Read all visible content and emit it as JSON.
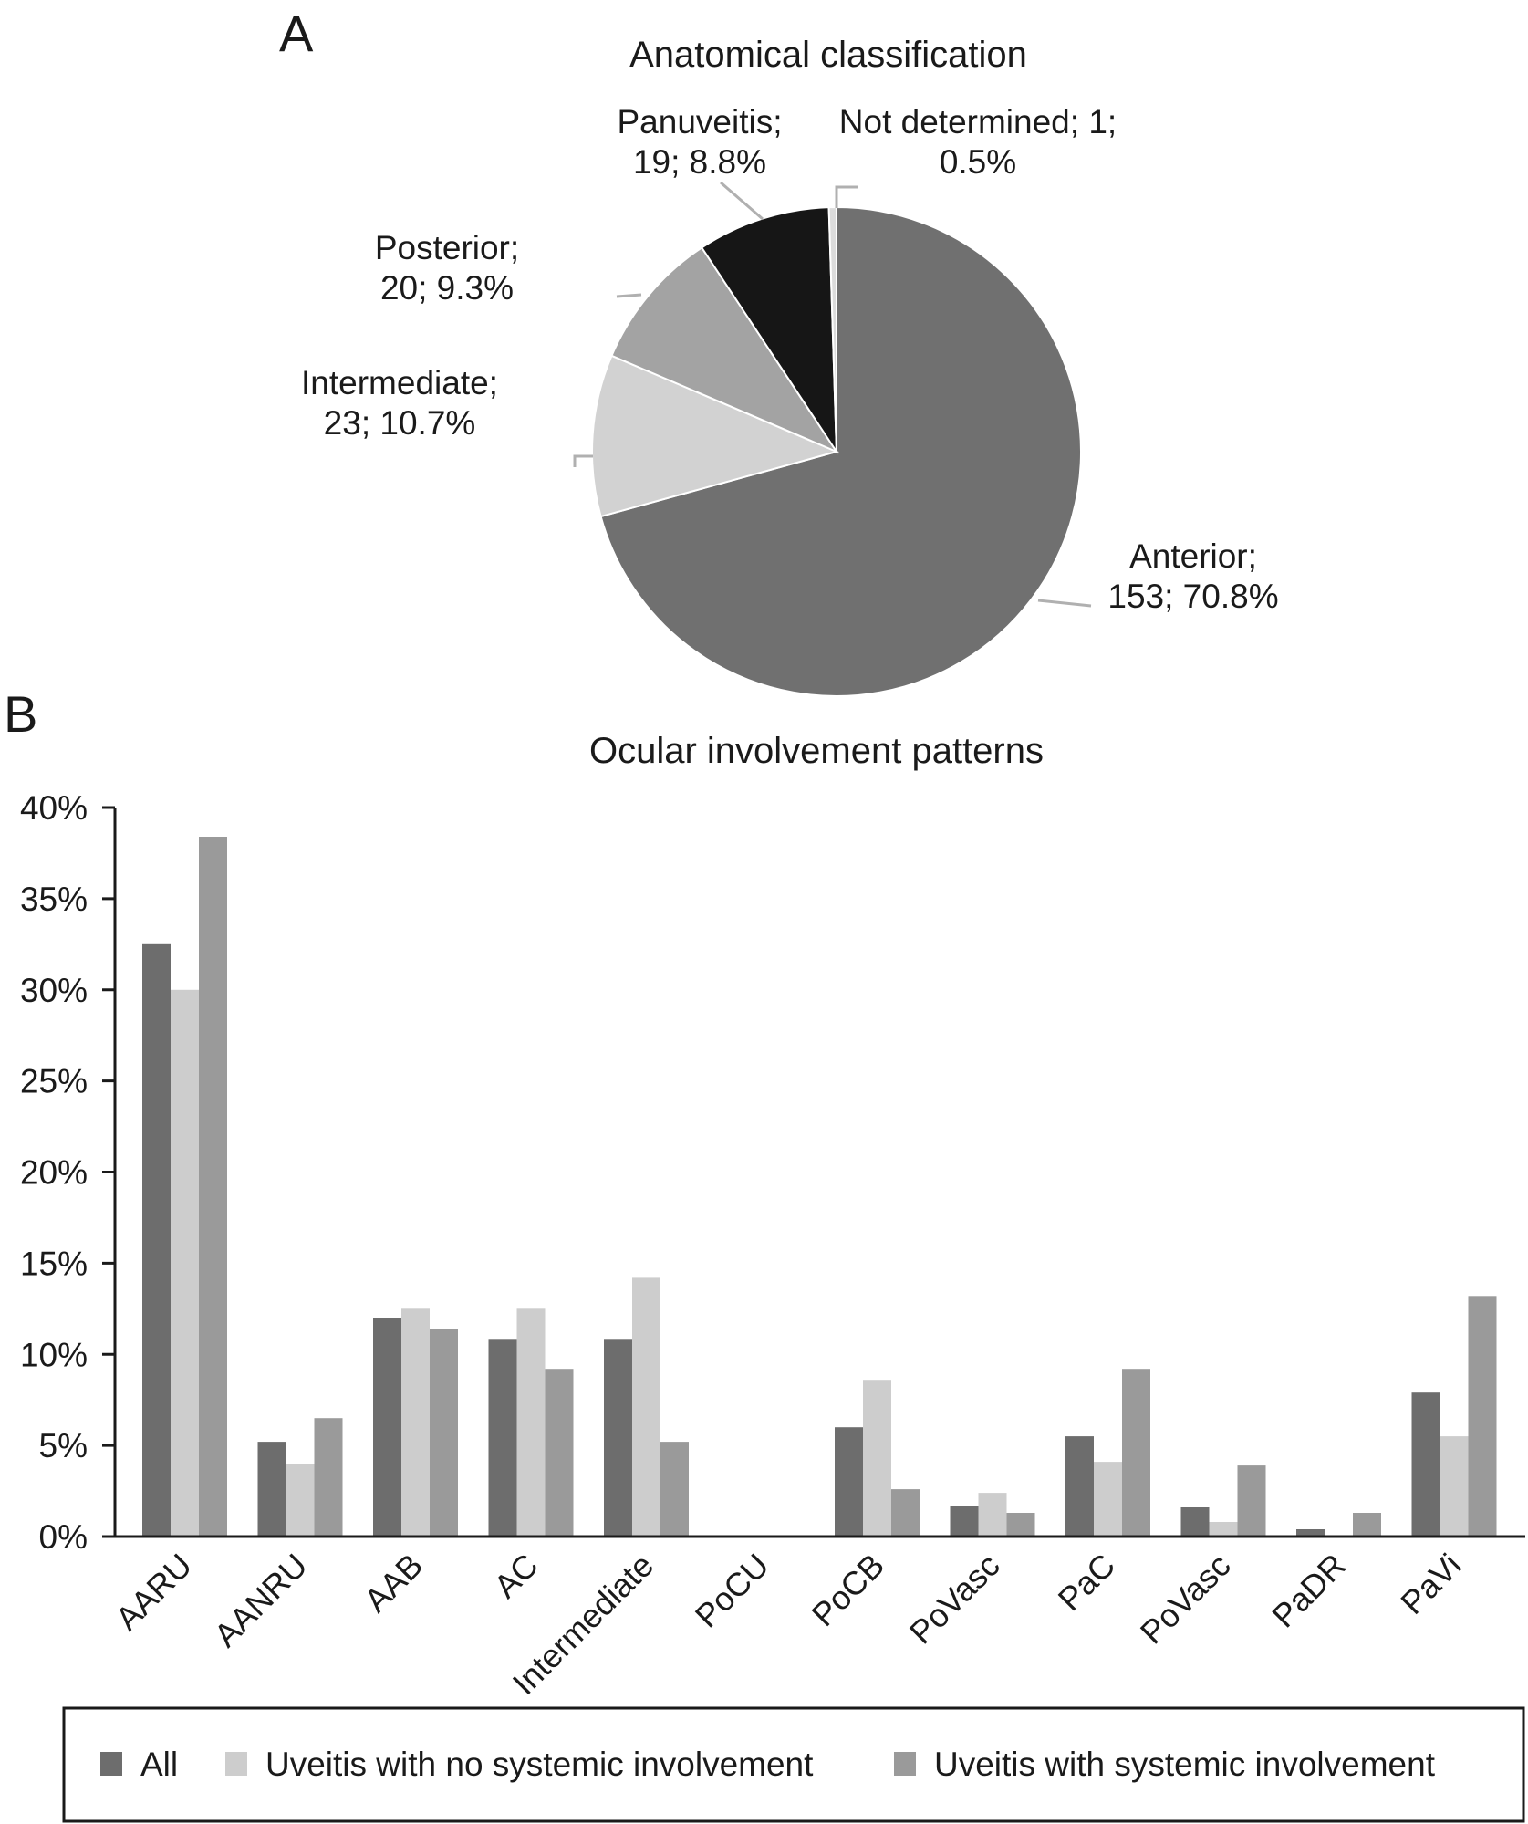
{
  "panels": {
    "a_label": "A",
    "b_label": "B"
  },
  "chart_data": [
    {
      "type": "pie",
      "title": "Anatomical classification",
      "slices": [
        {
          "name": "Anterior",
          "count": 153,
          "percent": 70.8,
          "label_lines": [
            "Anterior;",
            "153; 70.8%"
          ],
          "color": "#707070"
        },
        {
          "name": "Intermediate",
          "count": 23,
          "percent": 10.7,
          "label_lines": [
            "Intermediate;",
            "23; 10.7%"
          ],
          "color": "#d2d2d2"
        },
        {
          "name": "Posterior",
          "count": 20,
          "percent": 9.3,
          "label_lines": [
            "Posterior;",
            "20; 9.3%"
          ],
          "color": "#a3a3a3"
        },
        {
          "name": "Panuveitis",
          "count": 19,
          "percent": 8.8,
          "label_lines": [
            "Panuveitis;",
            "19; 8.8%"
          ],
          "color": "#161616"
        },
        {
          "name": "Not determined",
          "count": 1,
          "percent": 0.5,
          "label_lines": [
            "Not determined; 1;",
            "0.5%"
          ],
          "color": "#dcdcdc"
        }
      ]
    },
    {
      "type": "bar",
      "title": "Ocular involvement patterns",
      "categories": [
        "AARU",
        "AANRU",
        "AAB",
        "AC",
        "Intermediate",
        "PoCU",
        "PoCB",
        "PoVasc",
        "PaC",
        "PoVasc",
        "PaDR",
        "PaVi"
      ],
      "series": [
        {
          "name": "All",
          "color": "#6d6d6d",
          "values": [
            32.5,
            5.2,
            12.0,
            10.8,
            10.8,
            0,
            6.0,
            1.7,
            5.5,
            1.6,
            0.4,
            7.9
          ]
        },
        {
          "name": "Uveitis with no systemic involvement",
          "color": "#cdcdcd",
          "values": [
            30.0,
            4.0,
            12.5,
            12.5,
            14.2,
            0,
            8.6,
            2.4,
            4.1,
            0.8,
            0,
            5.5
          ]
        },
        {
          "name": "Uveitis with systemic involvement",
          "color": "#9a9a9a",
          "values": [
            38.4,
            6.5,
            11.4,
            9.2,
            5.2,
            0,
            2.6,
            1.3,
            9.2,
            3.9,
            1.3,
            13.2
          ]
        }
      ],
      "ylim": [
        0,
        40
      ],
      "yticks": [
        0,
        5,
        10,
        15,
        20,
        25,
        30,
        35,
        40
      ],
      "ytick_labels": [
        "0%",
        "5%",
        "10%",
        "15%",
        "20%",
        "25%",
        "30%",
        "35%",
        "40%"
      ],
      "legend": {
        "placement": "bottom",
        "entries": [
          "All",
          "Uveitis with no systemic involvement",
          "Uveitis with systemic involvement"
        ]
      }
    }
  ]
}
